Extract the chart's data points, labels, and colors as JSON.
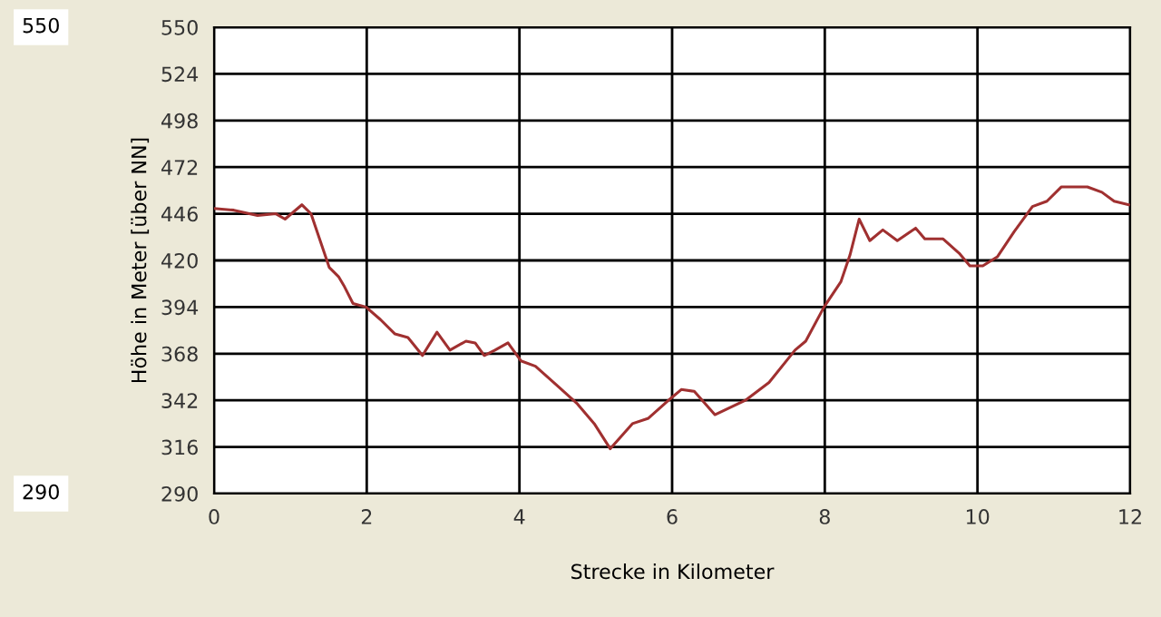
{
  "chart_data": {
    "type": "line",
    "xlabel": "Strecke in Kilometer",
    "ylabel": "Höhe in Meter [über NN]",
    "annotations": [
      "550",
      "290"
    ],
    "xlim": [
      0,
      12
    ],
    "xticks": [
      0,
      2,
      4,
      6,
      8,
      10,
      12
    ],
    "ylim": [
      290,
      550
    ],
    "yticks": [
      290,
      316,
      342,
      368,
      394,
      420,
      446,
      472,
      498,
      524,
      550
    ],
    "grid": true,
    "marker": "none",
    "line_style": "solid",
    "series": [
      {
        "color": "#a03030",
        "x": [
          0,
          0.26,
          0.57,
          0.81,
          0.93,
          1.15,
          1.27,
          1.39,
          1.51,
          1.63,
          1.7,
          1.82,
          1.99,
          2.18,
          2.37,
          2.54,
          2.73,
          2.92,
          3.09,
          3.3,
          3.42,
          3.54,
          3.68,
          3.85,
          4.02,
          4.21,
          4.5,
          4.76,
          4.98,
          5.19,
          5.48,
          5.69,
          5.98,
          6.12,
          6.29,
          6.56,
          6.96,
          7.27,
          7.61,
          7.75,
          7.99,
          8.21,
          8.33,
          8.45,
          8.59,
          8.76,
          8.95,
          9.19,
          9.31,
          9.55,
          9.76,
          9.9,
          10.07,
          10.26,
          10.48,
          10.72,
          10.91,
          11.1,
          11.44,
          11.63,
          11.79,
          11.98
        ],
        "values": [
          449,
          448,
          445,
          446,
          443,
          451,
          446,
          431,
          416,
          411,
          406,
          396,
          394,
          387,
          379,
          377,
          367,
          380,
          370,
          375,
          374,
          367,
          370,
          374,
          364,
          361,
          350,
          340,
          329,
          315,
          329,
          332,
          343,
          348,
          347,
          334,
          342,
          352,
          370,
          375,
          394,
          408,
          423,
          443,
          431,
          437,
          431,
          438,
          432,
          432,
          424,
          417,
          417,
          422,
          436,
          450,
          453,
          461,
          461,
          458,
          453,
          451
        ]
      }
    ]
  }
}
